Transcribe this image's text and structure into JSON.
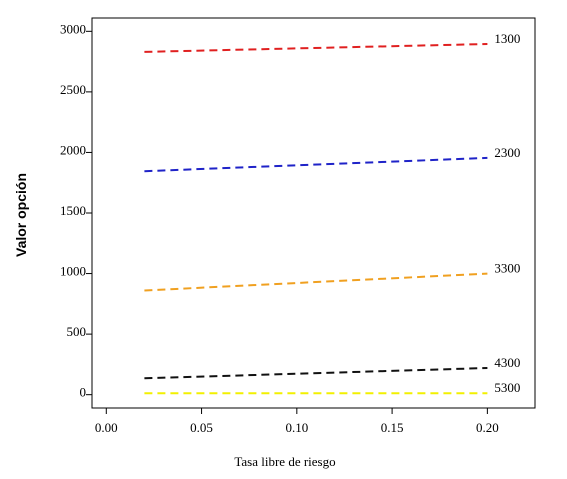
{
  "chart_data": {
    "type": "line",
    "title": "",
    "xlabel": "Tasa libre de riesgo",
    "ylabel": "Valor opción",
    "xlim": [
      -0.0075,
      0.225
    ],
    "ylim": [
      -110,
      3110
    ],
    "xticks": [
      0.0,
      0.05,
      0.1,
      0.15,
      0.2
    ],
    "xtick_labels": [
      "0.00",
      "0.05",
      "0.10",
      "0.15",
      "0.20"
    ],
    "yticks": [
      0,
      500,
      1000,
      1500,
      2000,
      2500,
      3000
    ],
    "ytick_labels": [
      "0",
      "500",
      "1000",
      "1500",
      "2000",
      "2500",
      "3000"
    ],
    "grid": false,
    "legend": "none",
    "line_style": "dashed",
    "series": [
      {
        "name": "1300",
        "color": "#e02020",
        "x": [
          0.02,
          0.2
        ],
        "y": [
          2830,
          2895
        ]
      },
      {
        "name": "2300",
        "color": "#1f23c8",
        "x": [
          0.02,
          0.2
        ],
        "y": [
          1845,
          1955
        ]
      },
      {
        "name": "3300",
        "color": "#f0a020",
        "x": [
          0.02,
          0.2
        ],
        "y": [
          860,
          1000
        ]
      },
      {
        "name": "4300",
        "color": "#111111",
        "x": [
          0.02,
          0.2
        ],
        "y": [
          135,
          220
        ]
      },
      {
        "name": "5300",
        "color": "#f2f000",
        "x": [
          0.02,
          0.2
        ],
        "y": [
          12,
          12
        ]
      }
    ]
  }
}
